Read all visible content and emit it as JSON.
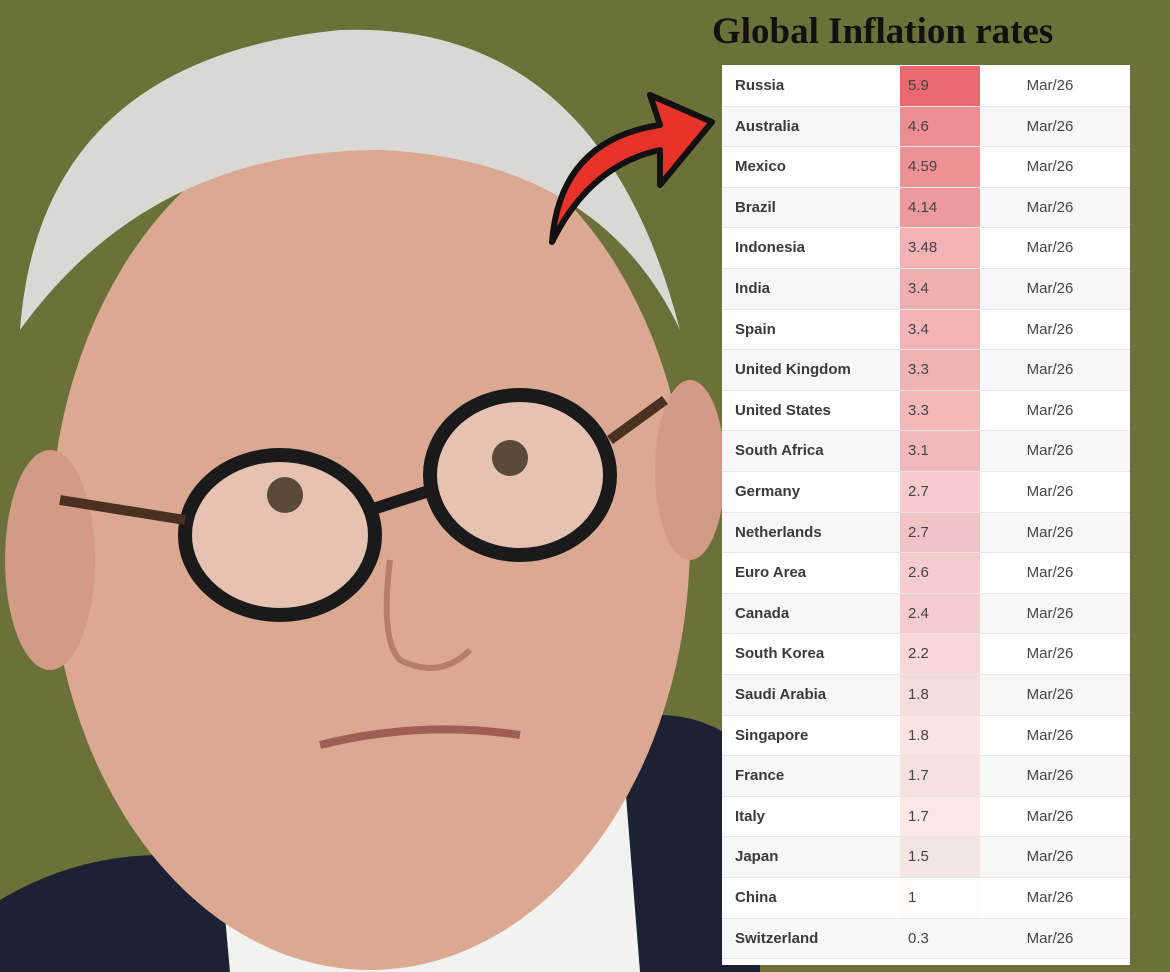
{
  "title": "Global Inflation rates",
  "table": {
    "rows": [
      [
        "Russia",
        5.9,
        "Mar/26"
      ],
      [
        "Australia",
        4.6,
        "Mar/26"
      ],
      [
        "Mexico",
        4.59,
        "Mar/26"
      ],
      [
        "Brazil",
        4.14,
        "Mar/26"
      ],
      [
        "Indonesia",
        3.48,
        "Mar/26"
      ],
      [
        "India",
        3.4,
        "Mar/26"
      ],
      [
        "Spain",
        3.4,
        "Mar/26"
      ],
      [
        "United Kingdom",
        3.3,
        "Mar/26"
      ],
      [
        "United States",
        3.3,
        "Mar/26"
      ],
      [
        "South Africa",
        3.1,
        "Mar/26"
      ],
      [
        "Germany",
        2.7,
        "Mar/26"
      ],
      [
        "Netherlands",
        2.7,
        "Mar/26"
      ],
      [
        "Euro Area",
        2.6,
        "Mar/26"
      ],
      [
        "Canada",
        2.4,
        "Mar/26"
      ],
      [
        "South Korea",
        2.2,
        "Mar/26"
      ],
      [
        "Saudi Arabia",
        1.8,
        "Mar/26"
      ],
      [
        "Singapore",
        1.8,
        "Mar/26"
      ],
      [
        "France",
        1.7,
        "Mar/26"
      ],
      [
        "Italy",
        1.7,
        "Mar/26"
      ],
      [
        "Japan",
        1.5,
        "Mar/26"
      ],
      [
        "China",
        1,
        "Mar/26"
      ],
      [
        "Switzerland",
        0.3,
        "Mar/26"
      ]
    ]
  }
}
